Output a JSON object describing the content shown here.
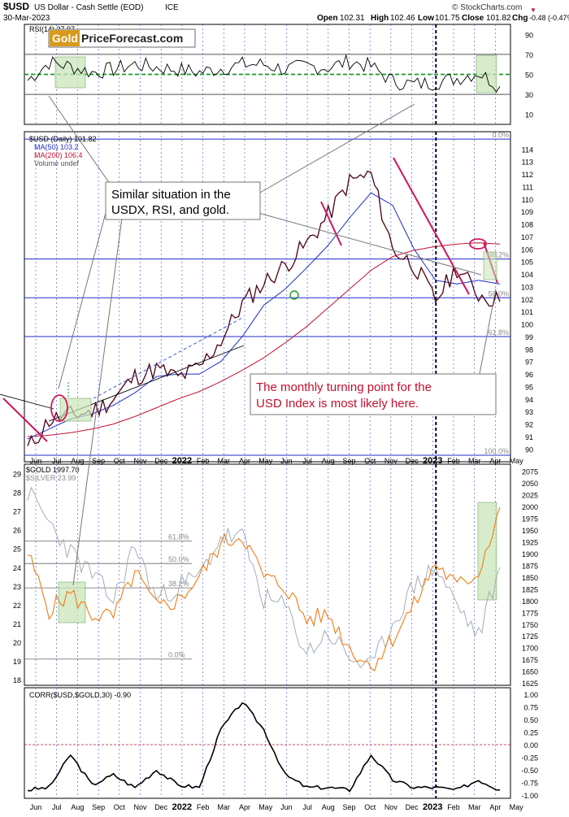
{
  "header": {
    "symbol": "$USD",
    "name": "US Dollar - Cash Settle (EOD)",
    "exchange": "ICE",
    "date": "30-Mar-2023",
    "open_label": "Open",
    "open": "102.31",
    "high_label": "High",
    "high": "102.46",
    "low_label": "Low",
    "low": "101.75",
    "close_label": "Close",
    "close": "101.82",
    "chg_label": "Chg",
    "chg": "-0.48 (-0.47%)",
    "chg_marker": "▼",
    "credit": "© StockCharts.com"
  },
  "logo": {
    "word1": "Gold",
    "word2": "PriceForecast.com"
  },
  "colors": {
    "blue_line": "#1f2ec8",
    "red_line": "#c4102e",
    "gold_orange": "#f07c16",
    "silver_gray": "#a4adb6",
    "highlight_green": "#c9e6b8",
    "annotation_red": "#c4102e"
  },
  "chart_data": [
    {
      "panel": "rsi",
      "type": "line",
      "legend": "RSI(14) 37.97",
      "ylim": [
        0,
        100
      ],
      "y_ticks": [
        "90",
        "70",
        "50",
        "30",
        "10"
      ],
      "levels": [
        70,
        50,
        30
      ],
      "x": [
        "Jun",
        "Jul",
        "Aug",
        "Sep",
        "Oct",
        "Nov",
        "Dec",
        "2022",
        "Feb",
        "Mar",
        "Apr",
        "May",
        "Jun",
        "Jul",
        "Aug",
        "Sep",
        "Oct",
        "Nov",
        "Dec",
        "2023",
        "Feb",
        "Mar",
        "Apr"
      ],
      "values": [
        44,
        62,
        58,
        52,
        55,
        60,
        57,
        55,
        52,
        56,
        60,
        60,
        55,
        58,
        57,
        63,
        58,
        43,
        40,
        42,
        46,
        52,
        38
      ]
    },
    {
      "panel": "usd",
      "type": "line",
      "legend": [
        "$USD (Daily) 101.82",
        "MA(50) 103.2",
        "MA(200) 106.4",
        "Volume undef"
      ],
      "ylim": [
        89.5,
        115
      ],
      "y_ticks": [
        "114",
        "113",
        "112",
        "111",
        "110",
        "109",
        "108",
        "107",
        "106",
        "105",
        "104",
        "103",
        "102",
        "101",
        "100",
        "99",
        "98",
        "97",
        "96",
        "95",
        "94",
        "93",
        "92",
        "91",
        "90"
      ],
      "fib_labels": [
        "0.0%",
        "38.2%",
        "50.0%",
        "61.8%",
        "100.0%"
      ],
      "fib_levels": [
        114.8,
        105.2,
        102.1,
        99.0,
        89.5
      ],
      "x": [
        "Jun",
        "Jul",
        "Aug",
        "Sep",
        "Oct",
        "Nov",
        "Dec",
        "2022",
        "Feb",
        "Mar",
        "Apr",
        "May",
        "Jun",
        "Jul",
        "Aug",
        "Sep",
        "Oct",
        "Nov",
        "Dec",
        "2023",
        "Feb",
        "Mar",
        "Apr"
      ],
      "series": [
        {
          "name": "$USD",
          "values": [
            90.0,
            92.3,
            92.7,
            93.0,
            94.0,
            95.8,
            96.4,
            95.7,
            96.5,
            98.7,
            101.6,
            103.3,
            104.7,
            106.4,
            108.7,
            111.4,
            112.0,
            106.0,
            104.7,
            101.9,
            104.5,
            102.4,
            101.8
          ]
        },
        {
          "name": "MA(50)",
          "values": [
            90.8,
            91.6,
            92.4,
            92.8,
            93.5,
            94.5,
            95.8,
            96.0,
            96.0,
            97.0,
            99.0,
            101.5,
            102.8,
            104.5,
            106.3,
            108.5,
            110.5,
            109.5,
            106.0,
            103.5,
            103.2,
            103.5,
            103.2
          ]
        },
        {
          "name": "MA(200)",
          "values": [
            91.0,
            91.1,
            91.3,
            91.6,
            92.0,
            92.6,
            93.3,
            94.0,
            94.6,
            95.4,
            96.3,
            97.3,
            98.5,
            99.8,
            101.3,
            102.8,
            104.3,
            105.4,
            105.9,
            106.2,
            106.4,
            106.5,
            106.4
          ]
        }
      ],
      "annotations": [
        "Similar situation in the USDX, RSI, and gold.",
        "The monthly turning point for the USD Index is most likely here."
      ]
    },
    {
      "panel": "gold",
      "type": "line",
      "legend": [
        "$GOLD 1997.70",
        "$SILVER 23.99"
      ],
      "ylim_gold": [
        1620,
        2090
      ],
      "ylim_silver": [
        17.7,
        29.5
      ],
      "y_ticks_right": [
        "2075",
        "2050",
        "2025",
        "2000",
        "1975",
        "1950",
        "1925",
        "1900",
        "1875",
        "1850",
        "1825",
        "1800",
        "1775",
        "1750",
        "1725",
        "1700",
        "1675",
        "1650",
        "1625"
      ],
      "y_ticks_left": [
        "29",
        "28",
        "27",
        "26",
        "25",
        "24",
        "23",
        "22",
        "21",
        "20",
        "19",
        "18"
      ],
      "fib_labels": [
        "61.8%",
        "50.0%",
        "38.2%",
        "0.0%"
      ],
      "fib_levels_silver": [
        25.4,
        24.2,
        22.9,
        19.1
      ],
      "x": [
        "Jun",
        "Jul",
        "Aug",
        "Sep",
        "Oct",
        "Nov",
        "Dec",
        "2022",
        "Feb",
        "Mar",
        "Apr",
        "May",
        "Jun",
        "Jul",
        "Aug",
        "Sep",
        "Oct",
        "Nov",
        "Dec",
        "2023",
        "Feb",
        "Mar",
        "Apr"
      ],
      "series": [
        {
          "name": "$GOLD",
          "values": [
            1900,
            1780,
            1815,
            1770,
            1765,
            1860,
            1785,
            1800,
            1850,
            1920,
            1940,
            1850,
            1830,
            1760,
            1770,
            1700,
            1660,
            1720,
            1790,
            1880,
            1830,
            1860,
            1998
          ]
        },
        {
          "name": "$SILVER",
          "values": [
            28.0,
            26.4,
            24.8,
            23.6,
            22.2,
            25.2,
            22.3,
            23.0,
            23.5,
            25.6,
            25.6,
            22.3,
            21.9,
            19.4,
            20.5,
            19.2,
            18.6,
            21.0,
            23.0,
            24.0,
            22.0,
            20.3,
            24.0
          ]
        }
      ]
    },
    {
      "panel": "corr",
      "type": "line",
      "legend": "CORR($USD,$GOLD,30) -0.90",
      "ylim": [
        -1.0,
        1.0
      ],
      "y_ticks": [
        "1.00",
        "0.75",
        "0.50",
        "0.25",
        "0.00",
        "-0.25",
        "-0.50",
        "-0.75",
        "-1.00"
      ],
      "x": [
        "Jun",
        "Jul",
        "Aug",
        "Sep",
        "Oct",
        "Nov",
        "Dec",
        "2022",
        "Feb",
        "Mar",
        "Apr",
        "May",
        "Jun",
        "Jul",
        "Aug",
        "Sep",
        "Oct",
        "Nov",
        "Dec",
        "2023",
        "Feb",
        "Mar",
        "Apr"
      ],
      "values": [
        -0.9,
        -0.85,
        -0.2,
        -0.8,
        -0.6,
        -0.85,
        -0.5,
        -0.8,
        -0.85,
        0.3,
        0.85,
        0.3,
        -0.6,
        -0.85,
        -0.85,
        -0.9,
        -0.2,
        -0.7,
        -0.85,
        -0.85,
        -0.9,
        -0.7,
        -0.9
      ]
    }
  ],
  "x_axis": {
    "labels": [
      "Jun",
      "Jul",
      "Aug",
      "Sep",
      "Oct",
      "Nov",
      "Dec",
      "2022",
      "Feb",
      "Mar",
      "Apr",
      "May",
      "Jun",
      "Jul",
      "Aug",
      "Sep",
      "Oct",
      "Nov",
      "Dec",
      "2023",
      "Feb",
      "Mar",
      "Apr",
      "May"
    ]
  }
}
